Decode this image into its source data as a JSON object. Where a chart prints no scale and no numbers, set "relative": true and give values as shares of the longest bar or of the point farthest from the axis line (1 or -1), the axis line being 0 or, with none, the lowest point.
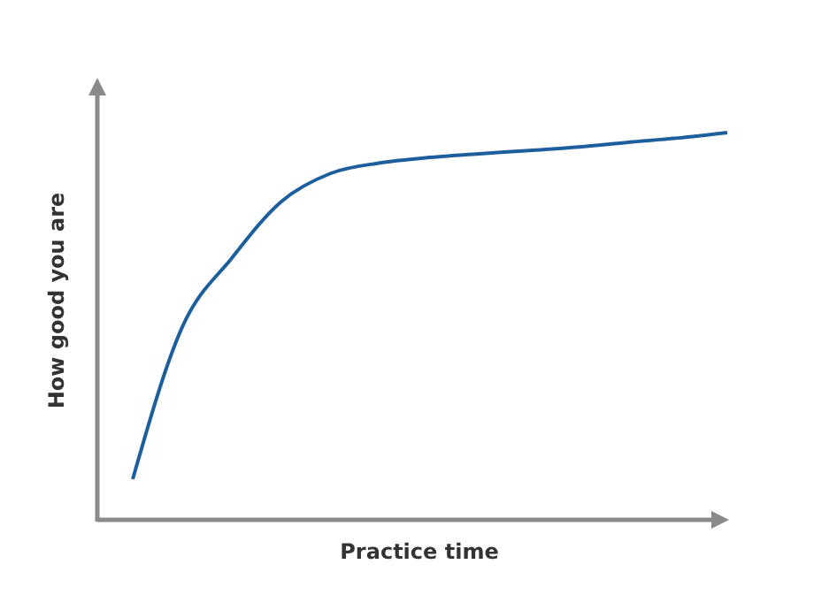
{
  "chart_data": {
    "type": "line",
    "relative": true,
    "xlabel": "Practice time",
    "ylabel": "How good you are",
    "categories": [
      null,
      null,
      null,
      null,
      null,
      null,
      null,
      null,
      null,
      null,
      null,
      null,
      null
    ],
    "values": [
      0.105,
      0.498,
      0.676,
      0.822,
      0.895,
      0.922,
      0.936,
      0.945,
      0.954,
      0.963,
      0.975,
      0.986,
      1
    ],
    "color": "#1d5f9c",
    "line_style": "solid"
  }
}
